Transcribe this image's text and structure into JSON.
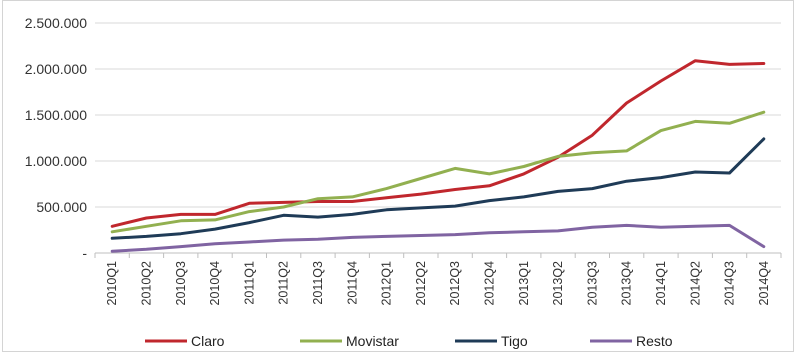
{
  "chart_data": {
    "type": "line",
    "title": "",
    "xlabel": "",
    "ylabel": "",
    "ylim": [
      0,
      2500000
    ],
    "yticks": [
      0,
      500000,
      1000000,
      1500000,
      2000000,
      2500000
    ],
    "ytick_labels": [
      "-",
      "500.000",
      "1.000.000",
      "1.500.000",
      "2.000.000",
      "2.500.000"
    ],
    "grid": "horizontal",
    "legend_position": "bottom",
    "categories": [
      "2010Q1",
      "2010Q2",
      "2010Q3",
      "2010Q4",
      "2011Q1",
      "2011Q2",
      "2011Q3",
      "2011Q4",
      "2012Q1",
      "2012Q2",
      "2012Q3",
      "2012Q4",
      "2013Q1",
      "2013Q2",
      "2013Q3",
      "2013Q4",
      "2014Q1",
      "2014Q2",
      "2014Q3",
      "2014Q4"
    ],
    "series": [
      {
        "name": "Claro",
        "color": "#c0272d",
        "values": [
          290000,
          380000,
          420000,
          420000,
          540000,
          550000,
          560000,
          560000,
          600000,
          640000,
          690000,
          730000,
          860000,
          1040000,
          1280000,
          1630000,
          1870000,
          2090000,
          2050000,
          2060000
        ]
      },
      {
        "name": "Movistar",
        "color": "#92b050",
        "values": [
          230000,
          290000,
          350000,
          360000,
          450000,
          500000,
          590000,
          610000,
          700000,
          810000,
          920000,
          860000,
          940000,
          1050000,
          1090000,
          1110000,
          1330000,
          1430000,
          1410000,
          1530000
        ]
      },
      {
        "name": "Tigo",
        "color": "#1f3b57",
        "values": [
          160000,
          180000,
          210000,
          260000,
          330000,
          410000,
          390000,
          420000,
          470000,
          490000,
          510000,
          570000,
          610000,
          670000,
          700000,
          780000,
          820000,
          880000,
          870000,
          1240000
        ]
      },
      {
        "name": "Resto",
        "color": "#8064a2",
        "values": [
          20000,
          40000,
          70000,
          100000,
          120000,
          140000,
          150000,
          170000,
          180000,
          190000,
          200000,
          220000,
          230000,
          240000,
          280000,
          300000,
          280000,
          290000,
          300000,
          70000
        ]
      }
    ]
  }
}
